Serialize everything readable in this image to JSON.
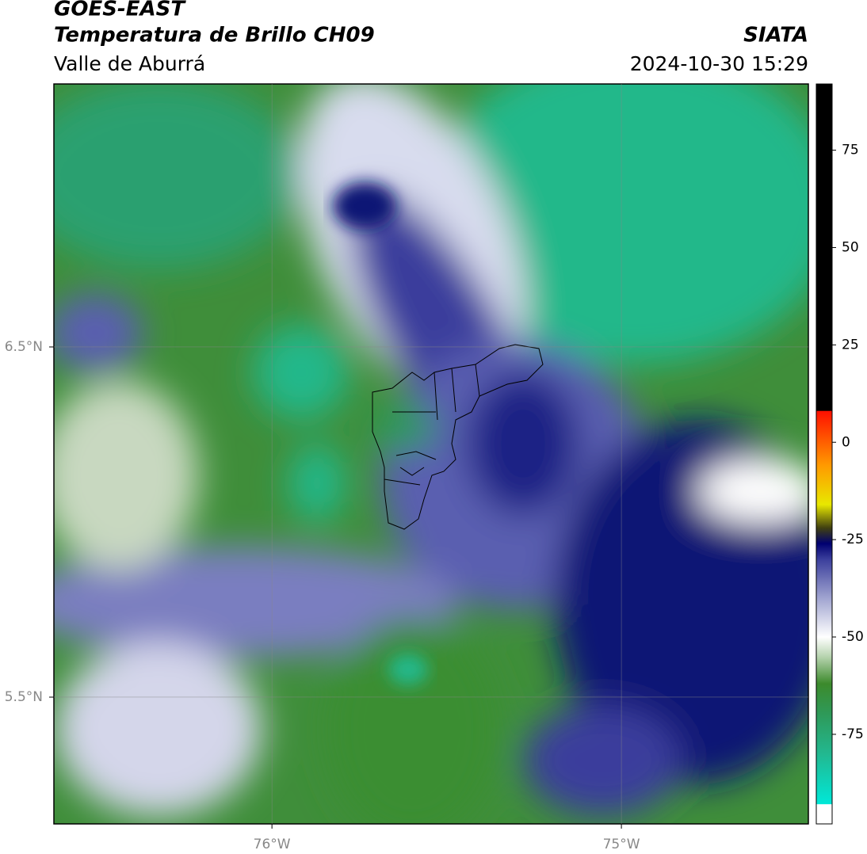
{
  "header": {
    "title": "GOES-EAST",
    "subtitle": "Temperatura de Brillo CH09",
    "region": "Valle de Aburrá",
    "source": "SIATA",
    "datetime": "2024-10-30 15:29"
  },
  "map": {
    "xlim": [
      -76.624,
      -74.465
    ],
    "ylim": [
      5.138,
      7.251
    ],
    "xticks": [
      {
        "value": -76,
        "label": "76°W"
      },
      {
        "value": -75,
        "label": "75°W"
      }
    ],
    "yticks": [
      {
        "value": 6.5,
        "label": "6.5°N"
      },
      {
        "value": 5.5,
        "label": "5.5°N"
      }
    ],
    "grid": true
  },
  "colorbar": {
    "lim": [
      -98,
      92
    ],
    "ticks": [
      75,
      50,
      25,
      0,
      -25,
      -50,
      -75
    ],
    "stops": [
      {
        "value": -98,
        "color": "#ffffff"
      },
      {
        "value": -93,
        "color": "#ffffff"
      },
      {
        "value": -92.9,
        "color": "#00e8d8"
      },
      {
        "value": -80,
        "color": "#22b890"
      },
      {
        "value": -70,
        "color": "#2e9a5a"
      },
      {
        "value": -62,
        "color": "#3c8a2c"
      },
      {
        "value": -55,
        "color": "#b8d4b0"
      },
      {
        "value": -50,
        "color": "#ffffff"
      },
      {
        "value": -40,
        "color": "#a0a4d0"
      },
      {
        "value": -30,
        "color": "#3a3e9c"
      },
      {
        "value": -26,
        "color": "#000070"
      },
      {
        "value": -22,
        "color": "#404010"
      },
      {
        "value": -16,
        "color": "#e8e800"
      },
      {
        "value": -6,
        "color": "#ff9a00"
      },
      {
        "value": 8,
        "color": "#ff1000"
      },
      {
        "value": 8.1,
        "color": "#000000"
      },
      {
        "value": 92,
        "color": "#000000"
      }
    ]
  }
}
